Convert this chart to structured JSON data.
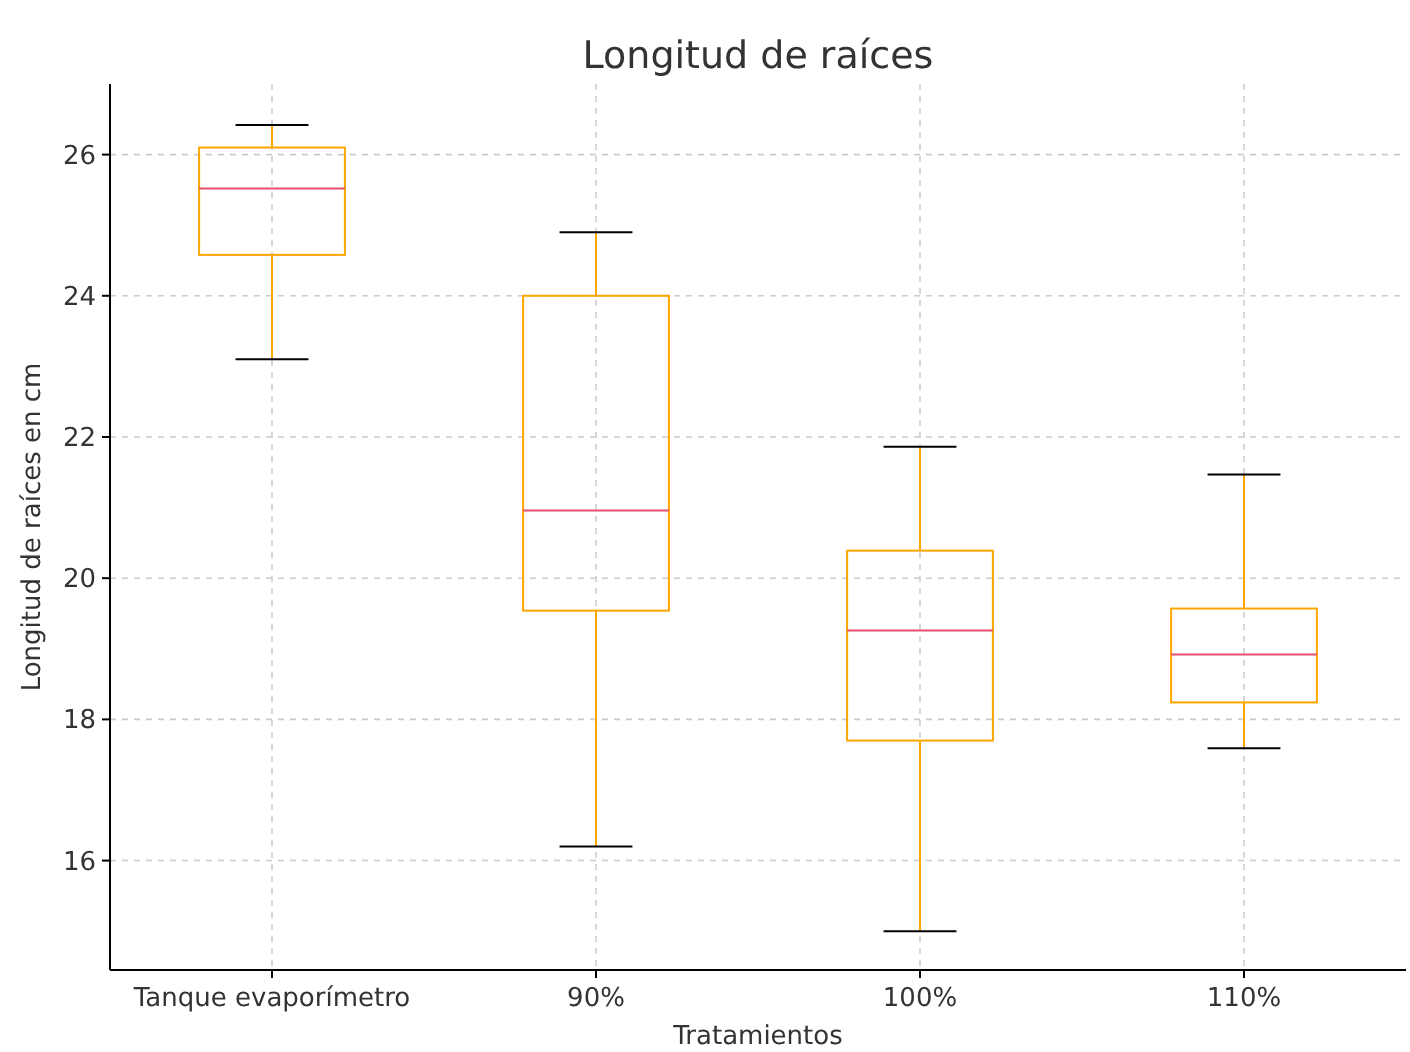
{
  "chart_data": {
    "type": "box",
    "title": "Longitud de raíces",
    "xlabel": "Tratamientos",
    "ylabel": "Longitud de raíces en cm",
    "categories": [
      "Tanque evaporímetro",
      "90%",
      "100%",
      "110%"
    ],
    "boxes": [
      {
        "low": 23.1,
        "q1": 24.58,
        "median": 25.52,
        "q3": 26.1,
        "high": 26.42
      },
      {
        "low": 16.2,
        "q1": 19.54,
        "median": 20.96,
        "q3": 24.0,
        "high": 24.9
      },
      {
        "low": 15.0,
        "q1": 17.7,
        "median": 19.26,
        "q3": 20.39,
        "high": 21.86
      },
      {
        "low": 17.59,
        "q1": 18.24,
        "median": 18.92,
        "q3": 19.57,
        "high": 21.47
      }
    ],
    "color": "#ffa500",
    "ylim": [
      14.45,
      27
    ],
    "yticks": [
      16,
      18,
      20,
      22,
      24,
      26
    ],
    "grid": true
  }
}
